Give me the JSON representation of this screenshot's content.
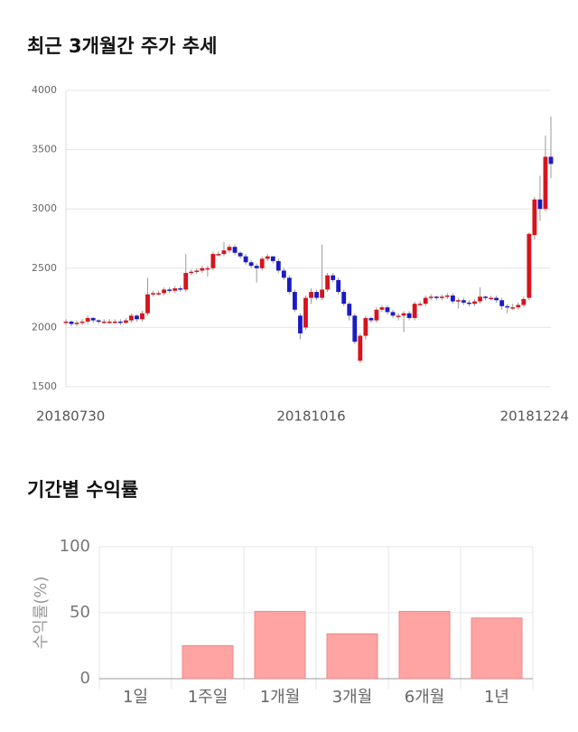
{
  "chart_data": [
    {
      "type": "candlestick",
      "title": "최근 3개월간 주가 추세",
      "categories": [
        "20180730",
        null,
        null,
        null,
        null,
        null,
        null,
        null,
        null,
        null,
        null,
        null,
        null,
        null,
        null,
        null,
        null,
        null,
        null,
        null,
        null,
        null,
        null,
        null,
        null,
        null,
        null,
        null,
        null,
        null,
        null,
        null,
        null,
        null,
        null,
        null,
        null,
        null,
        null,
        null,
        null,
        null,
        null,
        null,
        null,
        "20181016",
        null,
        null,
        null,
        null,
        null,
        null,
        null,
        null,
        null,
        null,
        null,
        null,
        null,
        null,
        null,
        null,
        null,
        null,
        null,
        null,
        null,
        null,
        null,
        null,
        null,
        null,
        null,
        null,
        null,
        null,
        null,
        null,
        null,
        null,
        null,
        null,
        null,
        null,
        null,
        null,
        null,
        null,
        null,
        "20181224"
      ],
      "open": [
        2040,
        2050,
        2030,
        2040,
        2050,
        2080,
        2060,
        2050,
        2050,
        2050,
        2050,
        2040,
        2060,
        2100,
        2070,
        2120,
        2280,
        2290,
        2290,
        2320,
        2310,
        2330,
        2320,
        2460,
        2470,
        2480,
        2500,
        2500,
        2620,
        2620,
        2650,
        2680,
        2630,
        2600,
        2550,
        2520,
        2500,
        2580,
        2600,
        2560,
        2480,
        2420,
        2300,
        2100,
        2000,
        2250,
        2300,
        2250,
        2320,
        2440,
        2400,
        2300,
        2200,
        2100,
        1720,
        1930,
        2080,
        2060,
        2150,
        2170,
        2130,
        2100,
        2100,
        2120,
        2080,
        2200,
        2200,
        2250,
        2260,
        2250,
        2260,
        2270,
        2220,
        2230,
        2210,
        2200,
        2220,
        2260,
        2250,
        2250,
        2230,
        2180,
        2170,
        2170,
        2190,
        2250,
        2780,
        3080,
        3000,
        3440
      ],
      "high": [
        2070,
        2060,
        2060,
        2070,
        2100,
        2090,
        2070,
        2070,
        2070,
        2070,
        2070,
        2080,
        2120,
        2110,
        2140,
        2420,
        2310,
        2310,
        2340,
        2340,
        2350,
        2350,
        2620,
        2490,
        2500,
        2520,
        2520,
        2640,
        2640,
        2720,
        2700,
        2700,
        2640,
        2620,
        2570,
        2540,
        2600,
        2620,
        2600,
        2580,
        2500,
        2440,
        2320,
        2120,
        2270,
        2330,
        2320,
        2700,
        2460,
        2460,
        2420,
        2320,
        2220,
        2120,
        1950,
        2100,
        2090,
        2170,
        2190,
        2190,
        2150,
        2120,
        2140,
        2140,
        2220,
        2220,
        2270,
        2280,
        2270,
        2280,
        2290,
        2290,
        2250,
        2250,
        2230,
        2240,
        2340,
        2270,
        2270,
        2270,
        2250,
        2200,
        2200,
        2210,
        2260,
        2800,
        3100,
        3280,
        3620,
        3780
      ],
      "low": [
        2020,
        2010,
        2010,
        2020,
        2030,
        2040,
        2030,
        2030,
        2030,
        2030,
        2020,
        2030,
        2040,
        2050,
        2050,
        2100,
        2260,
        2270,
        2270,
        2290,
        2290,
        2300,
        2300,
        2440,
        2450,
        2460,
        2430,
        2480,
        2600,
        2600,
        2630,
        2610,
        2580,
        2530,
        2500,
        2380,
        2480,
        2560,
        2540,
        2460,
        2400,
        2280,
        2130,
        1900,
        1980,
        2200,
        2230,
        2230,
        2300,
        2380,
        2280,
        2180,
        2060,
        1860,
        1700,
        1900,
        2040,
        2040,
        2130,
        2110,
        2080,
        2060,
        1960,
        2060,
        2060,
        2180,
        2180,
        2230,
        2230,
        2230,
        2240,
        2200,
        2160,
        2190,
        2180,
        2180,
        2200,
        2230,
        2230,
        2210,
        2150,
        2120,
        2150,
        2150,
        2170,
        2230,
        2740,
        2900,
        2980,
        3260
      ],
      "close": [
        2050,
        2030,
        2040,
        2050,
        2080,
        2060,
        2050,
        2050,
        2050,
        2050,
        2040,
        2060,
        2100,
        2070,
        2120,
        2280,
        2290,
        2290,
        2320,
        2310,
        2330,
        2320,
        2460,
        2470,
        2480,
        2500,
        2500,
        2620,
        2620,
        2650,
        2680,
        2630,
        2600,
        2550,
        2520,
        2500,
        2580,
        2600,
        2560,
        2480,
        2420,
        2300,
        2150,
        1950,
        2250,
        2300,
        2250,
        2320,
        2440,
        2400,
        2300,
        2200,
        2100,
        1880,
        1930,
        2080,
        2060,
        2150,
        2170,
        2130,
        2100,
        2100,
        2120,
        2080,
        2200,
        2200,
        2250,
        2260,
        2250,
        2260,
        2270,
        2220,
        2230,
        2210,
        2200,
        2220,
        2260,
        2250,
        2250,
        2230,
        2180,
        2170,
        2170,
        2190,
        2240,
        2790,
        3080,
        3000,
        3440,
        3380
      ],
      "up_color": "#d7141c",
      "down_color": "#1b1bc4",
      "ylim": [
        1500,
        4000
      ],
      "yticks": [
        1500,
        2000,
        2500,
        3000,
        3500,
        4000
      ],
      "grid": true
    },
    {
      "type": "bar",
      "title": "기간별 수익률",
      "ylabel": "수익률(%)",
      "categories": [
        "1일",
        "1주일",
        "1개월",
        "3개월",
        "6개월",
        "1년"
      ],
      "values": [
        0,
        25,
        51,
        34,
        51,
        46
      ],
      "color": "#ffa3a3",
      "ylim": [
        0,
        100
      ],
      "yticks": [
        0,
        50,
        100
      ],
      "grid": true
    }
  ]
}
